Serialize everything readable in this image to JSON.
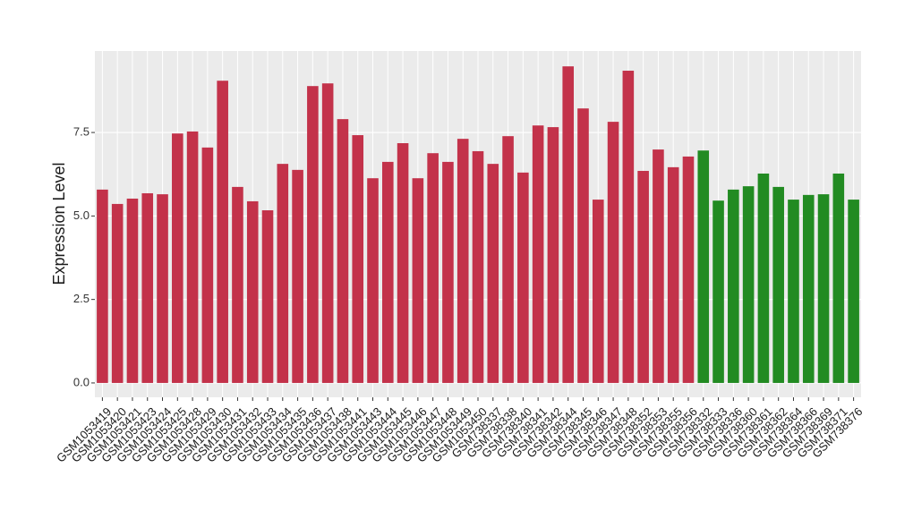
{
  "chart_data": {
    "type": "bar",
    "y_label": "Expression Level",
    "categories": [
      "GSM1053419",
      "GSM1053420",
      "GSM1053421",
      "GSM1053423",
      "GSM1053424",
      "GSM1053425",
      "GSM1053428",
      "GSM1053429",
      "GSM1053430",
      "GSM1053431",
      "GSM1053432",
      "GSM1053433",
      "GSM1053434",
      "GSM1053435",
      "GSM1053436",
      "GSM1053437",
      "GSM1053438",
      "GSM1053441",
      "GSM1053443",
      "GSM1053444",
      "GSM1053445",
      "GSM1053446",
      "GSM1053447",
      "GSM1053448",
      "GSM1053449",
      "GSM1053450",
      "GSM738337",
      "GSM738338",
      "GSM738340",
      "GSM738341",
      "GSM738342",
      "GSM738344",
      "GSM738345",
      "GSM738346",
      "GSM738347",
      "GSM738348",
      "GSM738352",
      "GSM738353",
      "GSM738355",
      "GSM738356",
      "GSM738332",
      "GSM738333",
      "GSM738336",
      "GSM738360",
      "GSM738361",
      "GSM738362",
      "GSM738364",
      "GSM738366",
      "GSM738369",
      "GSM738371",
      "GSM738376"
    ],
    "values": [
      5.79,
      5.36,
      5.52,
      5.68,
      5.65,
      7.47,
      7.53,
      7.05,
      9.05,
      5.87,
      5.44,
      5.17,
      6.56,
      6.38,
      8.89,
      8.97,
      7.9,
      7.42,
      6.13,
      6.62,
      7.18,
      6.13,
      6.88,
      6.62,
      7.31,
      6.94,
      6.56,
      7.39,
      6.3,
      7.71,
      7.66,
      9.48,
      8.22,
      5.49,
      7.82,
      9.35,
      6.35,
      6.99,
      6.46,
      6.78,
      6.96,
      5.46,
      5.79,
      5.89,
      6.27,
      5.87,
      5.49,
      5.63,
      5.65,
      6.27,
      5.49
    ],
    "colors": [
      "#c3324a",
      "#c3324a",
      "#c3324a",
      "#c3324a",
      "#c3324a",
      "#c3324a",
      "#c3324a",
      "#c3324a",
      "#c3324a",
      "#c3324a",
      "#c3324a",
      "#c3324a",
      "#c3324a",
      "#c3324a",
      "#c3324a",
      "#c3324a",
      "#c3324a",
      "#c3324a",
      "#c3324a",
      "#c3324a",
      "#c3324a",
      "#c3324a",
      "#c3324a",
      "#c3324a",
      "#c3324a",
      "#c3324a",
      "#c3324a",
      "#c3324a",
      "#c3324a",
      "#c3324a",
      "#c3324a",
      "#c3324a",
      "#c3324a",
      "#c3324a",
      "#c3324a",
      "#c3324a",
      "#c3324a",
      "#c3324a",
      "#c3324a",
      "#c3324a",
      "#228b22",
      "#228b22",
      "#228b22",
      "#228b22",
      "#228b22",
      "#228b22",
      "#228b22",
      "#228b22",
      "#228b22",
      "#228b22",
      "#228b22"
    ],
    "ylim": [
      -0.43,
      9.94
    ],
    "yticks": [
      {
        "value": 0,
        "label": "0.0"
      },
      2.5,
      {
        "value": 5,
        "label": "5.0"
      },
      7.5
    ],
    "grid": true
  }
}
